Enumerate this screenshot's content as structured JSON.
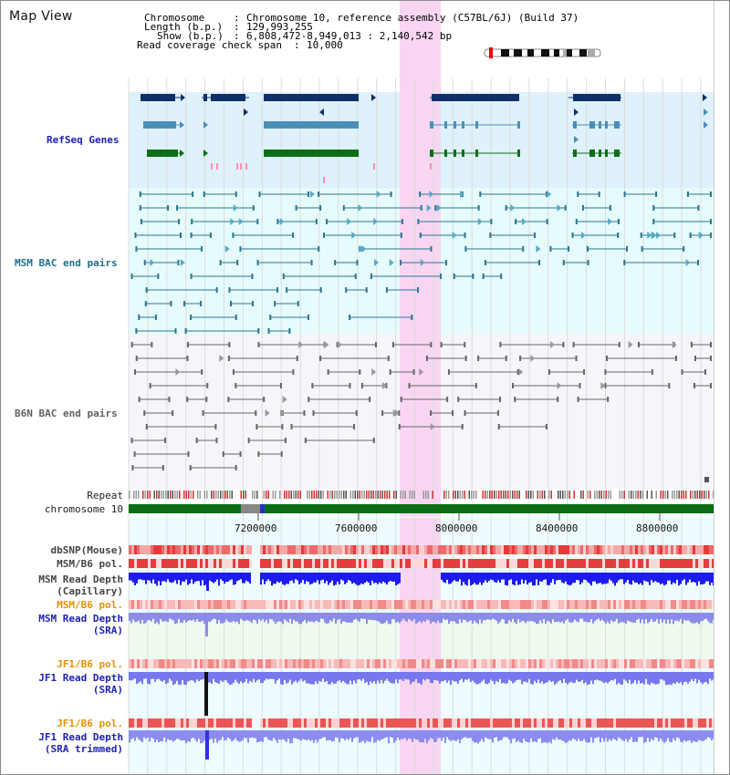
{
  "title": "Map View",
  "info": {
    "chromosome_key": "Chromosome",
    "chromosome_val": "Chromosome 10, reference assembly (C57BL/6J) (Build 37)",
    "length_key": "Length (b.p.)",
    "length_val": "129,993,255",
    "show_key": "Show (b.p.)",
    "show_val": "6,808,472-8,949,013 : 2,140,542 bp",
    "coverage_key": "Read coverage check span",
    "coverage_val": "10,000"
  },
  "tracks": {
    "refseq": "RefSeq Genes",
    "msm_bac": "MSM BAC end pairs",
    "b6n_bac": "B6N BAC end pairs",
    "repeat": "Repeat",
    "chromosome": "chromosome 10",
    "dbsnp": "dbSNP(Mouse)",
    "msm_b6_pol": "MSM/B6 pol.",
    "msm_depth_cap_1": "MSM Read Depth",
    "msm_depth_cap_2": "(Capillary)",
    "msm_b6_pol_2": "MSM/B6 pol.",
    "msm_depth_sra_1": "MSM Read Depth",
    "msm_depth_sra_2": "(SRA)",
    "jf1_b6_pol": "JF1/B6 pol.",
    "jf1_depth_1": "JF1 Read Depth",
    "jf1_depth_2": "(SRA)",
    "jf1_b6_pol_2": "JF1/B6 pol.",
    "jf1_trim_1": "JF1 Read Depth",
    "jf1_trim_2": "(SRA trimmed)"
  },
  "axis_ticks": [
    "7200000",
    "7600000",
    "8000000",
    "8400000",
    "8800000"
  ],
  "colors": {
    "refseq_bg": "#dff1fb",
    "msm_bg": "#e6fbfb",
    "b6n_bg": "#f6f6fa",
    "highlight": "#f8d6f2",
    "gene_dark": "#0f2f6a",
    "gene_mid": "#4a8fb8",
    "gene_green": "#0c6e16",
    "msm_bac": "#2d7690",
    "b6n_bac": "#666666",
    "label_blue": "#1e22b0",
    "label_orange": "#e69200",
    "label_gray": "#444444"
  }
}
